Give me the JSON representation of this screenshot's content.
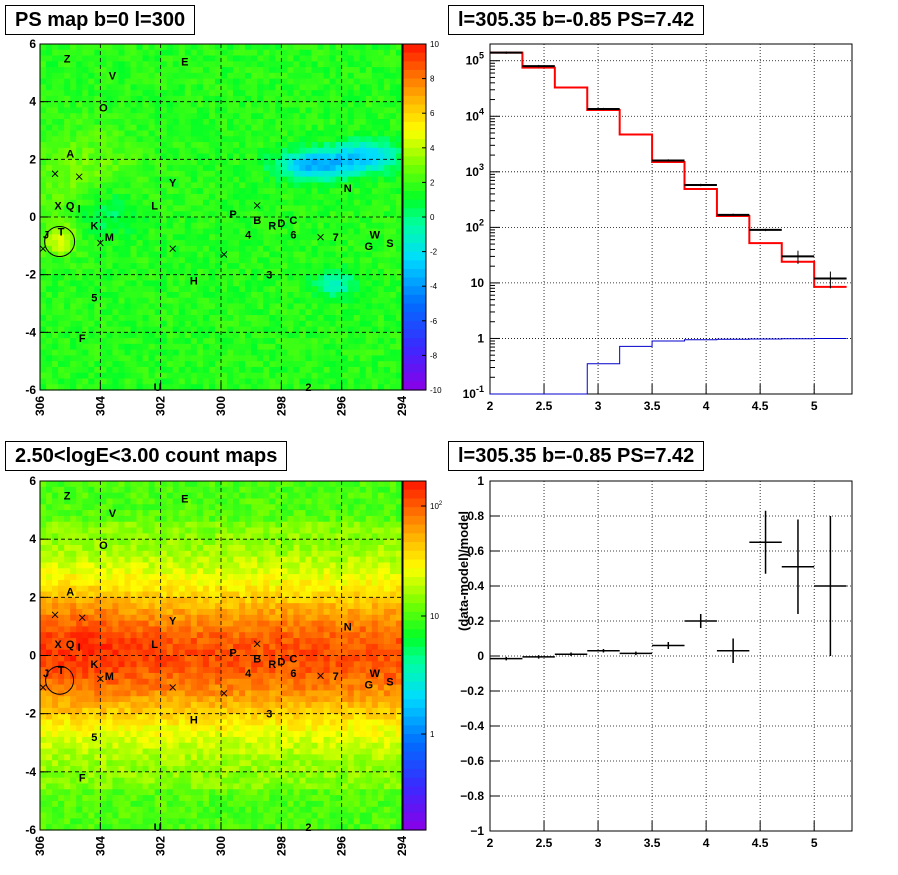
{
  "titles": {
    "p1": "PS map b=0 l=300",
    "p2": "l=305.35 b=-0.85 PS=7.42",
    "p3": "2.50<logE<3.00 count maps",
    "p4": "l=305.35 b=-0.85 PS=7.42"
  },
  "chart_data": [
    {
      "type": "heatmap",
      "title": "PS map b=0 l=300",
      "xlim": [
        306,
        294
      ],
      "ylim": [
        -6,
        6
      ],
      "x_ticks": [
        "306",
        "304",
        "302",
        "300",
        "298",
        "296",
        "294"
      ],
      "y_ticks": [
        "-6",
        "-4",
        "-2",
        "0",
        "2",
        "4",
        "6"
      ],
      "z_range": [
        -10,
        10
      ],
      "z_ticks": [
        "10",
        "8",
        "6",
        "4",
        "2",
        "0",
        "-2",
        "-4",
        "-6",
        "-8",
        "-10"
      ],
      "grid": true,
      "sources": [
        {
          "label": "Z",
          "l": 305.1,
          "b": 5.5
        },
        {
          "label": "V",
          "l": 303.6,
          "b": 4.9
        },
        {
          "label": "E",
          "l": 301.2,
          "b": 5.4
        },
        {
          "label": "O",
          "l": 303.9,
          "b": 3.8
        },
        {
          "label": "A",
          "l": 305.0,
          "b": 2.2
        },
        {
          "label": "Y",
          "l": 301.6,
          "b": 1.2
        },
        {
          "label": "N",
          "l": 295.8,
          "b": 1.0
        },
        {
          "label": "X",
          "l": 305.4,
          "b": 0.4
        },
        {
          "label": "Q",
          "l": 305.0,
          "b": 0.4
        },
        {
          "label": "I",
          "l": 304.7,
          "b": 0.3
        },
        {
          "label": "L",
          "l": 302.2,
          "b": 0.4
        },
        {
          "label": "P",
          "l": 299.6,
          "b": 0.1
        },
        {
          "label": "B",
          "l": 298.8,
          "b": -0.1
        },
        {
          "label": "D",
          "l": 298.0,
          "b": -0.2
        },
        {
          "label": "C",
          "l": 297.6,
          "b": -0.1
        },
        {
          "label": "R",
          "l": 298.3,
          "b": -0.3
        },
        {
          "label": "K",
          "l": 304.2,
          "b": -0.3
        },
        {
          "label": "T",
          "l": 305.3,
          "b": -0.5
        },
        {
          "label": "J",
          "l": 305.8,
          "b": -0.6
        },
        {
          "label": "M",
          "l": 303.7,
          "b": -0.7
        },
        {
          "label": "4",
          "l": 299.1,
          "b": -0.6
        },
        {
          "label": "6",
          "l": 297.6,
          "b": -0.6
        },
        {
          "label": "7",
          "l": 296.2,
          "b": -0.7
        },
        {
          "label": "W",
          "l": 294.9,
          "b": -0.6
        },
        {
          "label": "G",
          "l": 295.1,
          "b": -1.0
        },
        {
          "label": "S",
          "l": 294.4,
          "b": -0.9
        },
        {
          "label": "H",
          "l": 300.9,
          "b": -2.2
        },
        {
          "label": "3",
          "l": 298.4,
          "b": -2.0
        },
        {
          "label": "5",
          "l": 304.2,
          "b": -2.8
        },
        {
          "label": "F",
          "l": 304.6,
          "b": -4.2
        },
        {
          "label": "U",
          "l": 302.1,
          "b": -5.9
        },
        {
          "label": "2",
          "l": 297.1,
          "b": -5.9
        }
      ]
    },
    {
      "type": "line",
      "title": "l=305.35 b=-0.85 PS=7.42",
      "xlim": [
        2,
        5.35
      ],
      "ylim": [
        0.1,
        200000
      ],
      "log_y": true,
      "x_ticks": [
        "2",
        "2.5",
        "3",
        "3.5",
        "4",
        "4.5",
        "5"
      ],
      "y_ticks": [
        "10^-1",
        "1",
        "10",
        "10^2",
        "10^3",
        "10^4",
        "10^5"
      ],
      "grid": true,
      "bin_edges": [
        2.0,
        2.3,
        2.6,
        2.9,
        3.2,
        3.5,
        3.8,
        4.1,
        4.4,
        4.7,
        5.0,
        5.3
      ],
      "series": [
        {
          "values": [
            140000,
            80000,
            13500,
            1600,
            580,
            168,
            90,
            30,
            12
          ]
        },
        {
          "values": [
            140000,
            75000,
            33000,
            13000,
            4700,
            1500,
            490,
            160,
            52,
            24,
            8.5
          ]
        },
        {
          "values": [
            0.1,
            0.1,
            0.1,
            0.35,
            0.72,
            0.9,
            0.95,
            0.97,
            0.98,
            0.99,
            1.0
          ]
        }
      ],
      "data_points": [
        {
          "x": 2.15,
          "y": 140000,
          "xerr": 0.15
        },
        {
          "x": 2.45,
          "y": 80000,
          "xerr": 0.15
        },
        {
          "x": 3.05,
          "y": 13500,
          "xerr": 0.15
        },
        {
          "x": 3.65,
          "y": 1600,
          "xerr": 0.15
        },
        {
          "x": 3.95,
          "y": 580,
          "xerr": 0.15
        },
        {
          "x": 4.25,
          "y": 168,
          "xerr": 0.15
        },
        {
          "x": 4.55,
          "y": 90,
          "xerr": 0.15
        },
        {
          "x": 4.85,
          "y": 30,
          "xerr": 0.15,
          "yerr": 8
        },
        {
          "x": 5.15,
          "y": 12,
          "xerr": 0.15,
          "yerr": 4
        }
      ]
    },
    {
      "type": "heatmap",
      "title": "2.50<logE<3.00 count maps",
      "xlim": [
        306,
        294
      ],
      "ylim": [
        -6,
        6
      ],
      "x_ticks": [
        "306",
        "304",
        "302",
        "300",
        "298",
        "296",
        "294"
      ],
      "y_ticks": [
        "-6",
        "-4",
        "-2",
        "0",
        "2",
        "4",
        "6"
      ],
      "z_log": true,
      "z_ticks": [
        "10^2",
        "10",
        "1"
      ],
      "grid": true
    },
    {
      "type": "scatter",
      "title": "l=305.35 b=-0.85 PS=7.42",
      "ylabel": "(data-model)/model",
      "xlim": [
        2,
        5.35
      ],
      "ylim": [
        -1,
        1
      ],
      "x_ticks": [
        "2",
        "2.5",
        "3",
        "3.5",
        "4",
        "4.5",
        "5"
      ],
      "y_ticks": [
        "-1",
        "-0.8",
        "-0.6",
        "-0.4",
        "-0.2",
        "0",
        "0.2",
        "0.4",
        "0.6",
        "0.8",
        "1"
      ],
      "grid": true,
      "points": [
        {
          "x": 2.15,
          "y": -0.015,
          "xerr": 0.15,
          "yerr": 0.01
        },
        {
          "x": 2.45,
          "y": -0.005,
          "xerr": 0.15,
          "yerr": 0.01
        },
        {
          "x": 2.75,
          "y": 0.01,
          "xerr": 0.15,
          "yerr": 0.01
        },
        {
          "x": 3.05,
          "y": 0.03,
          "xerr": 0.15,
          "yerr": 0.01
        },
        {
          "x": 3.35,
          "y": 0.015,
          "xerr": 0.15,
          "yerr": 0.01
        },
        {
          "x": 3.65,
          "y": 0.06,
          "xerr": 0.15,
          "yerr": 0.02
        },
        {
          "x": 3.95,
          "y": 0.2,
          "xerr": 0.15,
          "yerr": 0.04
        },
        {
          "x": 4.25,
          "y": 0.03,
          "xerr": 0.15,
          "yerr": 0.07
        },
        {
          "x": 4.55,
          "y": 0.65,
          "xerr": 0.15,
          "yerr": 0.18
        },
        {
          "x": 4.85,
          "y": 0.51,
          "xerr": 0.15,
          "yerr": 0.27
        },
        {
          "x": 5.15,
          "y": 0.4,
          "xerr": 0.15,
          "yerr": 0.4
        }
      ]
    }
  ]
}
